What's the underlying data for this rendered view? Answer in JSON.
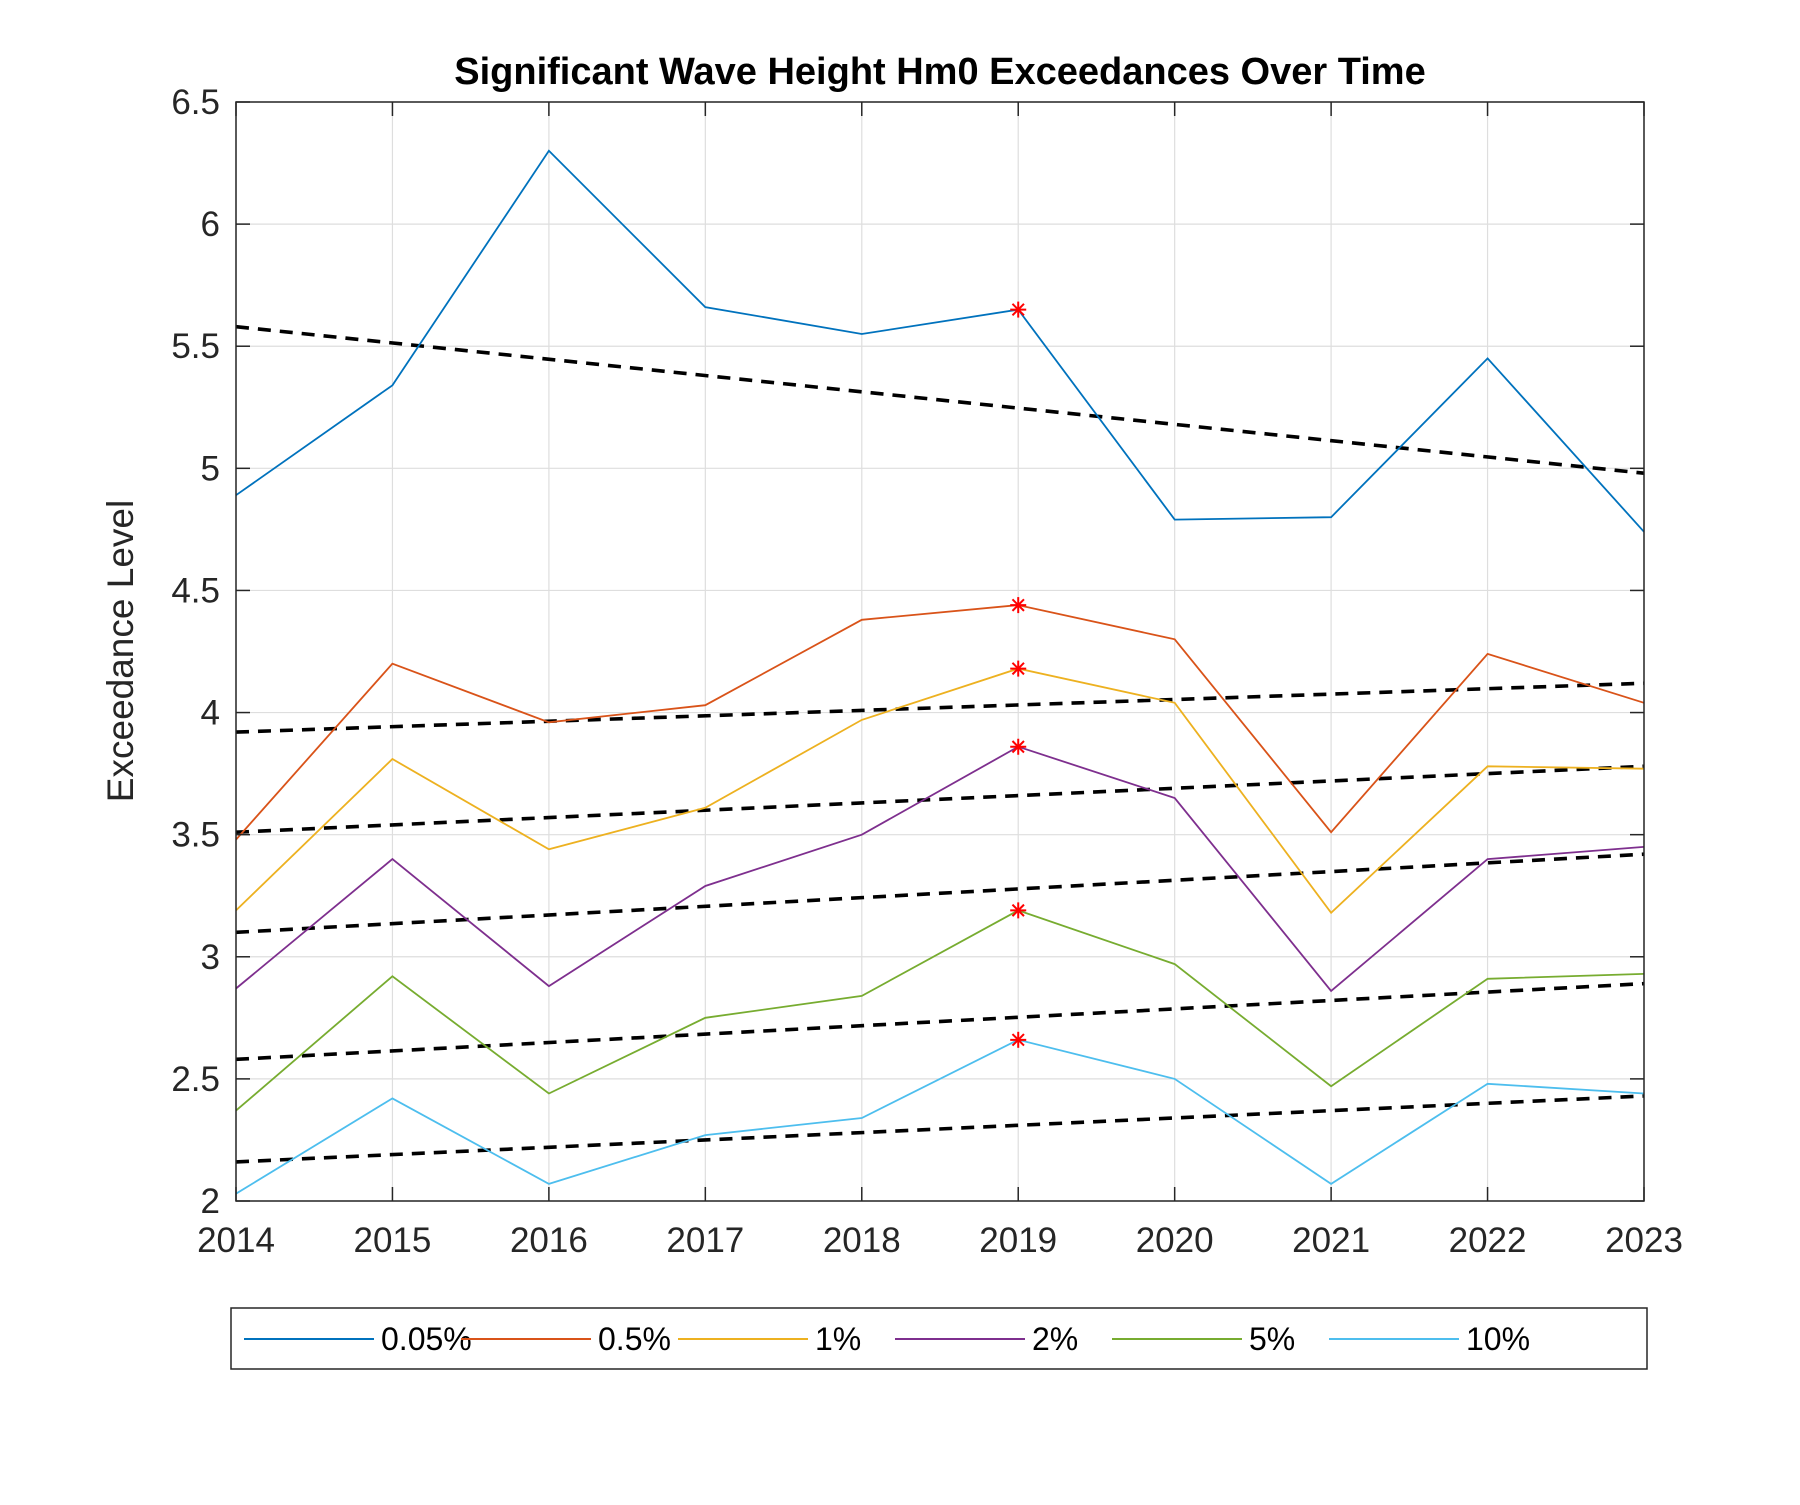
{
  "chart_data": {
    "type": "line",
    "title": "Significant Wave Height Hm0 Exceedances Over Time",
    "xlabel": "",
    "ylabel": "Exceedance Level",
    "xlim": [
      2014,
      2023
    ],
    "ylim": [
      2,
      6.5
    ],
    "x": [
      2014,
      2015,
      2016,
      2017,
      2018,
      2019,
      2020,
      2021,
      2022,
      2023
    ],
    "x_ticks": [
      "2014",
      "2015",
      "2016",
      "2017",
      "2018",
      "2019",
      "2020",
      "2021",
      "2022",
      "2023"
    ],
    "y_ticks": [
      "2",
      "2.5",
      "3",
      "3.5",
      "4",
      "4.5",
      "5",
      "5.5",
      "6",
      "6.5"
    ],
    "grid": true,
    "legend_position": "bottom-outside",
    "series": [
      {
        "name": "0.05%",
        "color": "#0072BD",
        "values": [
          4.89,
          5.34,
          6.3,
          5.66,
          5.55,
          5.65,
          4.79,
          4.8,
          5.45,
          4.74
        ],
        "trend": [
          5.58,
          4.98
        ]
      },
      {
        "name": "0.5%",
        "color": "#D95319",
        "values": [
          3.48,
          4.2,
          3.96,
          4.03,
          4.38,
          4.44,
          4.3,
          3.51,
          4.24,
          4.04
        ],
        "trend": [
          3.92,
          4.12
        ]
      },
      {
        "name": "1%",
        "color": "#EDB120",
        "values": [
          3.19,
          3.81,
          3.44,
          3.61,
          3.97,
          4.18,
          4.04,
          3.18,
          3.78,
          3.77
        ],
        "trend": [
          3.51,
          3.78
        ]
      },
      {
        "name": "2%",
        "color": "#7E2F8E",
        "values": [
          2.87,
          3.4,
          2.88,
          3.29,
          3.5,
          3.86,
          3.65,
          2.86,
          3.4,
          3.45
        ],
        "trend": [
          3.1,
          3.42
        ]
      },
      {
        "name": "5%",
        "color": "#77AC30",
        "values": [
          2.37,
          2.92,
          2.44,
          2.75,
          2.84,
          3.19,
          2.97,
          2.47,
          2.91,
          2.93
        ],
        "trend": [
          2.58,
          2.89
        ]
      },
      {
        "name": "10%",
        "color": "#4DBEEE",
        "values": [
          2.03,
          2.42,
          2.07,
          2.27,
          2.34,
          2.66,
          2.5,
          2.07,
          2.48,
          2.44
        ],
        "trend": [
          2.16,
          2.43
        ]
      }
    ],
    "trend_style": {
      "color": "#000000",
      "dash": "dashed"
    },
    "highlight": {
      "x": 2019,
      "marker": "asterisk",
      "color": "#FF0000"
    }
  }
}
